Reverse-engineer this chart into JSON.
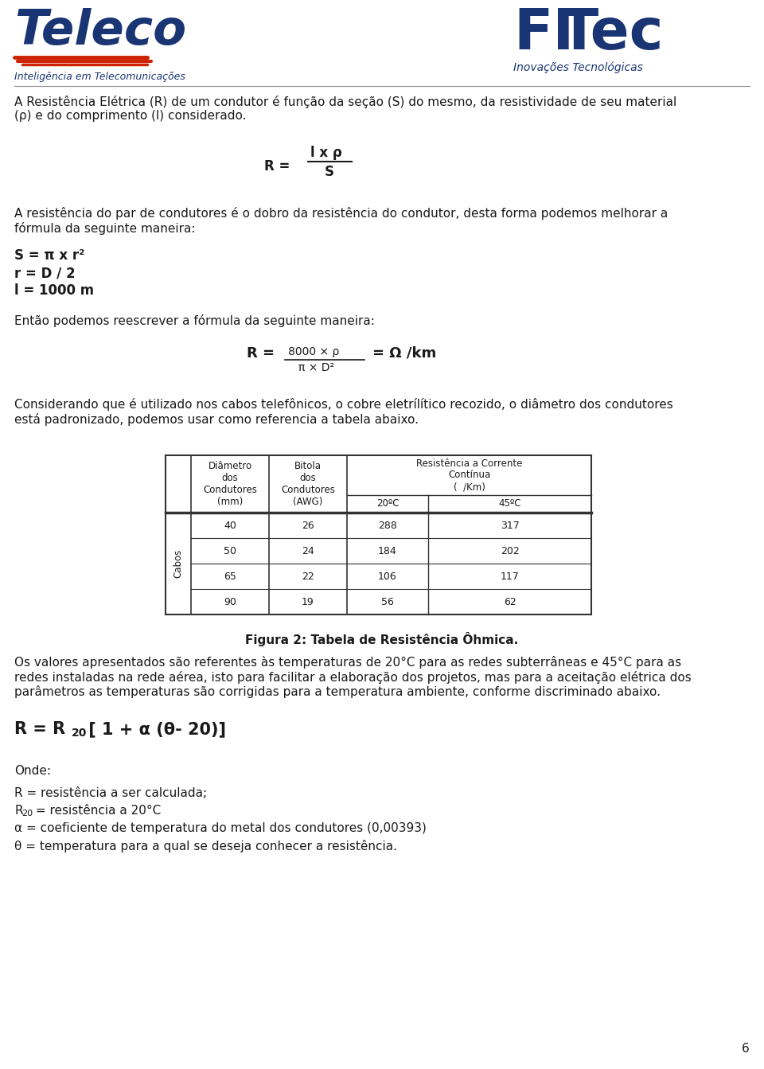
{
  "bg_color": "#ffffff",
  "text_color": "#1a1a1a",
  "para1": "A Resistência Elétrica (R) de um condutor é função da seção (S) do mesmo, da resistividade de seu material\n(ρ) e do comprimento (l) considerado.",
  "para2": "A resistência do par de condutores é o dobro da resistência do condutor, desta forma podemos melhorar a\nfórmula da seguinte maneira:",
  "eq1": "S = π x r²",
  "eq2": "r = D / 2",
  "eq3": "l = 1000 m",
  "para3": "Então podemos reescrever a fórmula da seguinte maneira:",
  "para4": "Considerando que é utilizado nos cabos telefônicos, o cobre eletrílítico recozido, o diâmetro dos condutores\nestá padronizado, podemos usar como referencia a tabela abaixo.",
  "table_data": [
    [
      "40",
      "26",
      "288",
      "317"
    ],
    [
      "50",
      "24",
      "184",
      "202"
    ],
    [
      "65",
      "22",
      "106",
      "117"
    ],
    [
      "90",
      "19",
      "56",
      "62"
    ]
  ],
  "fig_caption": "Figura 2: Tabela de Resistência Ôhmica.",
  "para5": "Os valores apresentados são referentes às temperaturas de 20°C para as redes subterrâneas e 45°C para as\nredes instaladas na rede aérea, isto para facilitar a elaboração dos projetos, mas para a aceitação elétrica dos\nparâmetros as temperaturas são corrigidas para a temperatura ambiente, conforme discriminado abaixo.",
  "para6_title": "Onde:",
  "para6_lines": [
    "R = resistência a ser calculada;",
    "R    = resistência a 20°C",
    "α = coeficiente de temperatura do metal dos condutores (0,00393)",
    "θ = temperatura para a qual se deseja conhecer a resistência."
  ],
  "page_number": "6",
  "teleco_color": "#1a3573",
  "fitec_color": "#1a3573",
  "red_color": "#cc2200",
  "teleco_sub": "Inteligência em Telecomunicações",
  "fitec_sub": "Inovações Tecnológicas"
}
